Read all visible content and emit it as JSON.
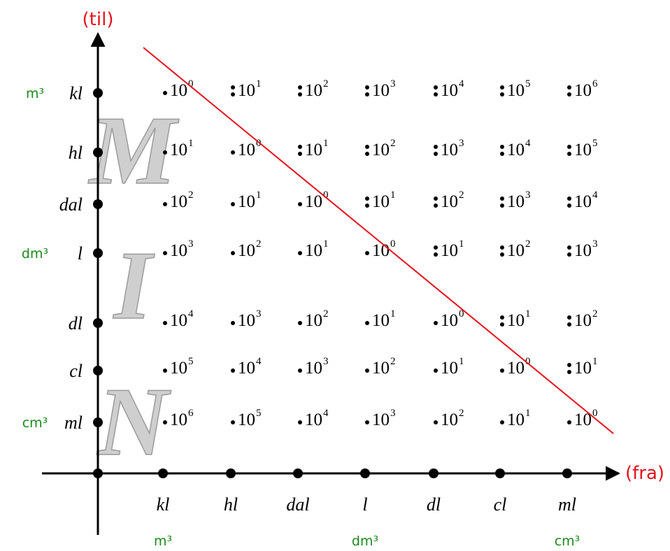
{
  "axes": {
    "y_title": "(til)",
    "x_title": "(fra)"
  },
  "y_units": [
    "kl",
    "hl",
    "dal",
    "l",
    "dl",
    "cl",
    "ml"
  ],
  "x_units": [
    "kl",
    "hl",
    "dal",
    "l",
    "dl",
    "cl",
    "ml"
  ],
  "y_volume_labels": [
    {
      "row": 0,
      "text": "m³"
    },
    {
      "row": 3,
      "text": "dm³"
    },
    {
      "row": 6,
      "text": "cm³"
    }
  ],
  "x_volume_labels": [
    {
      "col": 0,
      "text": "m³"
    },
    {
      "col": 3,
      "text": "dm³"
    },
    {
      "col": 6,
      "text": "cm³"
    }
  ],
  "watermark_letters": [
    "M",
    "I",
    "N"
  ],
  "cell_base": "10",
  "exponents": [
    [
      "0",
      "1",
      "2",
      "3",
      "4",
      "5",
      "6"
    ],
    [
      "1",
      "0",
      "1",
      "2",
      "3",
      "4",
      "5"
    ],
    [
      "2",
      "1",
      "0",
      "1",
      "2",
      "3",
      "4"
    ],
    [
      "3",
      "2",
      "1",
      "0",
      "1",
      "2",
      "3"
    ],
    [
      "4",
      "3",
      "2",
      "1",
      "0",
      "1",
      "2"
    ],
    [
      "5",
      "4",
      "3",
      "2",
      "1",
      "0",
      "1"
    ],
    [
      "6",
      "5",
      "4",
      "3",
      "2",
      "1",
      "0"
    ]
  ],
  "operators": [
    [
      "multiply",
      "divide",
      "divide",
      "divide",
      "divide",
      "divide",
      "divide"
    ],
    [
      "multiply",
      "multiply",
      "divide",
      "divide",
      "divide",
      "divide",
      "divide"
    ],
    [
      "multiply",
      "multiply",
      "multiply",
      "divide",
      "divide",
      "divide",
      "divide"
    ],
    [
      "multiply",
      "multiply",
      "multiply",
      "multiply",
      "divide",
      "divide",
      "divide"
    ],
    [
      "multiply",
      "multiply",
      "multiply",
      "multiply",
      "multiply",
      "divide",
      "divide"
    ],
    [
      "multiply",
      "multiply",
      "multiply",
      "multiply",
      "multiply",
      "multiply",
      "divide"
    ],
    [
      "multiply",
      "multiply",
      "multiply",
      "multiply",
      "multiply",
      "multiply",
      "multiply"
    ]
  ],
  "colors": {
    "axis": "#000000",
    "diagonal": "#e8101a",
    "axis_title": "#e8101a",
    "volume_label": "#1a8a1a",
    "watermark": "#cfcfcf"
  }
}
